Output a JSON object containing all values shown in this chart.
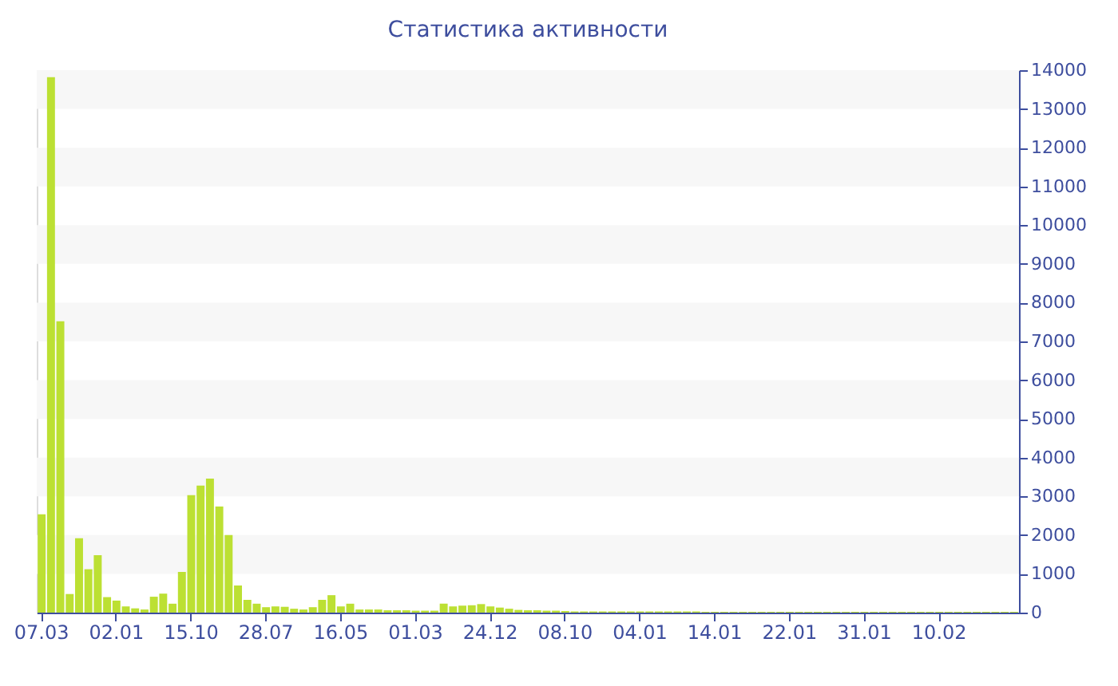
{
  "chart_data": {
    "type": "bar",
    "title": "Статистика активности",
    "categories": [
      "07.03",
      null,
      null,
      null,
      null,
      null,
      null,
      null,
      "02.01",
      null,
      null,
      null,
      null,
      null,
      null,
      null,
      "15.10",
      null,
      null,
      null,
      null,
      null,
      null,
      null,
      "28.07",
      null,
      null,
      null,
      null,
      null,
      null,
      null,
      "16.05",
      null,
      null,
      null,
      null,
      null,
      null,
      null,
      "01.03",
      null,
      null,
      null,
      null,
      null,
      null,
      null,
      "24.12",
      null,
      null,
      null,
      null,
      null,
      null,
      null,
      "08.10",
      null,
      null,
      null,
      null,
      null,
      null,
      null,
      "04.01",
      null,
      null,
      null,
      null,
      null,
      null,
      null,
      "14.01",
      null,
      null,
      null,
      null,
      null,
      null,
      null,
      "22.01",
      null,
      null,
      null,
      null,
      null,
      null,
      null,
      "31.01",
      null,
      null,
      null,
      null,
      null,
      null,
      null,
      "10.02",
      null,
      null,
      null,
      null,
      null,
      null,
      null,
      null
    ],
    "values": [
      2540,
      13820,
      7520,
      480,
      1920,
      1120,
      1480,
      400,
      310,
      160,
      110,
      80,
      410,
      490,
      230,
      1050,
      3030,
      3280,
      3460,
      2740,
      2000,
      700,
      330,
      230,
      140,
      160,
      150,
      100,
      80,
      140,
      330,
      450,
      160,
      230,
      80,
      80,
      80,
      60,
      60,
      60,
      50,
      50,
      50,
      230,
      160,
      180,
      190,
      220,
      160,
      130,
      100,
      70,
      60,
      60,
      50,
      50,
      40,
      30,
      30,
      30,
      30,
      30,
      30,
      30,
      30,
      30,
      30,
      30,
      30,
      30,
      30,
      20,
      20,
      20,
      20,
      20,
      20,
      20,
      20,
      20,
      20,
      20,
      20,
      20,
      20,
      20,
      20,
      20,
      20,
      20,
      20,
      20,
      20,
      20,
      20,
      20,
      20,
      20,
      20,
      20,
      20,
      20,
      20,
      20,
      20
    ],
    "color": "#bce033",
    "ylim": [
      0,
      14000
    ],
    "yticks": [
      0,
      1000,
      2000,
      3000,
      4000,
      5000,
      6000,
      7000,
      8000,
      9000,
      10000,
      11000,
      12000,
      13000,
      14000
    ]
  }
}
